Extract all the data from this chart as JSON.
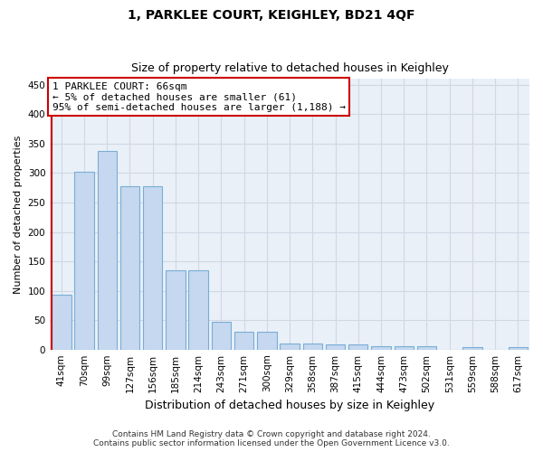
{
  "title": "1, PARKLEE COURT, KEIGHLEY, BD21 4QF",
  "subtitle": "Size of property relative to detached houses in Keighley",
  "xlabel": "Distribution of detached houses by size in Keighley",
  "ylabel": "Number of detached properties",
  "categories": [
    "41sqm",
    "70sqm",
    "99sqm",
    "127sqm",
    "156sqm",
    "185sqm",
    "214sqm",
    "243sqm",
    "271sqm",
    "300sqm",
    "329sqm",
    "358sqm",
    "387sqm",
    "415sqm",
    "444sqm",
    "473sqm",
    "502sqm",
    "531sqm",
    "559sqm",
    "588sqm",
    "617sqm"
  ],
  "values": [
    93,
    303,
    338,
    278,
    278,
    134,
    134,
    47,
    31,
    31,
    10,
    10,
    9,
    9,
    5,
    5,
    5,
    0,
    4,
    0,
    4
  ],
  "bar_color": "#c5d8ef",
  "bar_edge_color": "#7aadd4",
  "ylim": [
    0,
    460
  ],
  "yticks": [
    0,
    50,
    100,
    150,
    200,
    250,
    300,
    350,
    400,
    450
  ],
  "vline_color": "#cc0000",
  "vline_x_index": -0.42,
  "annotation_text": "1 PARKLEE COURT: 66sqm\n← 5% of detached houses are smaller (61)\n95% of semi-detached houses are larger (1,188) →",
  "annotation_box_edge_color": "#cc0000",
  "footer_text": "Contains HM Land Registry data © Crown copyright and database right 2024.\nContains public sector information licensed under the Open Government Licence v3.0.",
  "bg_color": "#ffffff",
  "plot_bg_color": "#eaf0f8",
  "grid_color": "#d0d8e4",
  "title_fontsize": 10,
  "subtitle_fontsize": 9,
  "xlabel_fontsize": 9,
  "ylabel_fontsize": 8,
  "tick_fontsize": 7.5,
  "annotation_fontsize": 8,
  "footer_fontsize": 6.5
}
